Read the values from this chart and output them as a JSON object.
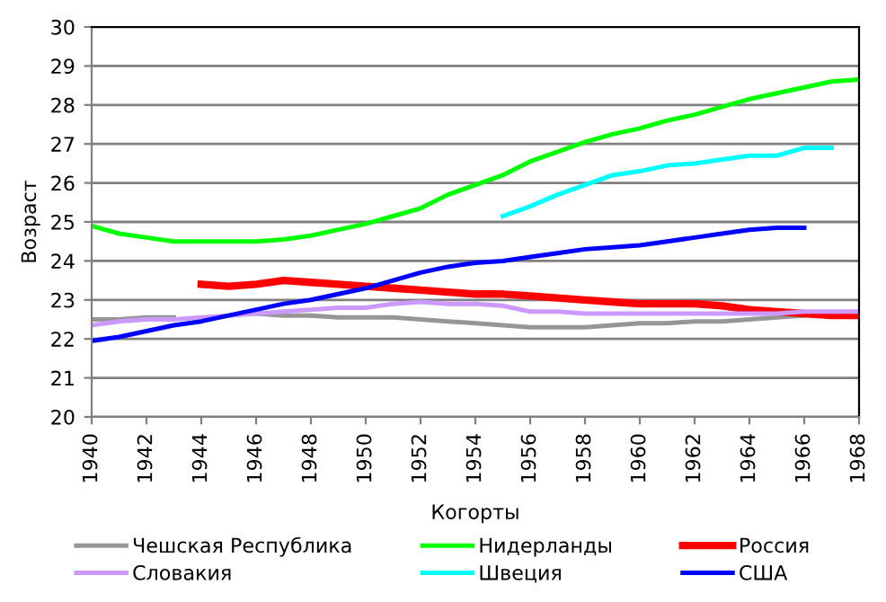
{
  "chart_data": {
    "type": "line",
    "xlabel": "Когорты",
    "ylabel": "Возраст",
    "xlim": [
      1940,
      1968
    ],
    "xticks": [
      1940,
      1942,
      1944,
      1946,
      1948,
      1950,
      1952,
      1954,
      1956,
      1958,
      1960,
      1962,
      1964,
      1966,
      1968
    ],
    "ylim": [
      20,
      30
    ],
    "yticks": [
      20,
      21,
      22,
      23,
      24,
      25,
      26,
      27,
      28,
      29,
      30
    ],
    "grid": "y",
    "legend": "bottom",
    "marker": "none",
    "line_style": "solid",
    "series": [
      {
        "name": "Чешская Республика",
        "color": "#969696",
        "x": [
          1940,
          1941,
          1942,
          1943,
          1944,
          1945,
          1946,
          1947,
          1948,
          1949,
          1950,
          1951,
          1952,
          1953,
          1954,
          1955,
          1956,
          1957,
          1958,
          1959,
          1960,
          1961,
          1962,
          1963,
          1964,
          1965,
          1966
        ],
        "values": [
          22.5,
          22.5,
          22.55,
          22.55,
          null,
          null,
          22.65,
          22.6,
          22.6,
          22.55,
          22.55,
          22.55,
          22.5,
          22.45,
          22.4,
          22.35,
          22.3,
          22.3,
          22.3,
          22.35,
          22.4,
          22.4,
          22.45,
          22.45,
          22.5,
          22.55,
          22.6
        ]
      },
      {
        "name": "Нидерланды",
        "color": "#00ff00",
        "x": [
          1940,
          1941,
          1942,
          1943,
          1944,
          1945,
          1946,
          1947,
          1948,
          1949,
          1950,
          1951,
          1952,
          1953,
          1954,
          1955,
          1956,
          1957,
          1958,
          1959,
          1960,
          1961,
          1962,
          1963,
          1964,
          1965,
          1966,
          1967,
          1968
        ],
        "values": [
          24.9,
          24.7,
          24.6,
          24.5,
          24.5,
          24.5,
          24.5,
          24.55,
          24.65,
          24.8,
          24.95,
          25.15,
          25.35,
          25.7,
          25.95,
          26.2,
          26.55,
          26.8,
          27.05,
          27.25,
          27.4,
          27.6,
          27.75,
          27.95,
          28.15,
          28.3,
          28.45,
          28.6,
          28.65
        ]
      },
      {
        "name": "Россия",
        "color": "#ff0000",
        "x": [
          1944,
          1945,
          1946,
          1947,
          1948,
          1949,
          1950,
          1951,
          1952,
          1953,
          1954,
          1955,
          1956,
          1957,
          1958,
          1959,
          1960,
          1961,
          1962,
          1963,
          1964,
          1965,
          1966,
          1967,
          1968
        ],
        "values": [
          23.4,
          23.35,
          23.4,
          23.5,
          23.45,
          23.4,
          23.35,
          23.3,
          23.25,
          23.2,
          23.15,
          23.15,
          23.1,
          23.05,
          23.0,
          22.95,
          22.9,
          22.9,
          22.9,
          22.85,
          22.75,
          22.7,
          22.65,
          22.6,
          22.6
        ]
      },
      {
        "name": "Словакия",
        "color": "#cc99ff",
        "x": [
          1940,
          1941,
          1942,
          1943,
          1944,
          1945,
          1946,
          1947,
          1948,
          1949,
          1950,
          1951,
          1952,
          1953,
          1954,
          1955,
          1956,
          1957,
          1958,
          1959,
          1960,
          1961,
          1962,
          1963,
          1964,
          1965,
          1966,
          1967,
          1968
        ],
        "values": [
          22.35,
          22.45,
          22.5,
          22.5,
          22.55,
          22.6,
          22.65,
          22.7,
          22.75,
          22.8,
          22.8,
          22.9,
          22.95,
          22.9,
          22.9,
          22.85,
          22.7,
          22.7,
          22.65,
          22.65,
          22.65,
          22.65,
          22.65,
          22.65,
          22.65,
          22.65,
          22.7,
          22.7,
          22.7
        ]
      },
      {
        "name": "Швеция",
        "color": "#00ffff",
        "x": [
          1955,
          1956,
          1957,
          1958,
          1959,
          1960,
          1961,
          1962,
          1963,
          1964,
          1965,
          1966,
          1967
        ],
        "values": [
          25.15,
          25.4,
          25.7,
          25.95,
          26.2,
          26.3,
          26.45,
          26.5,
          26.6,
          26.7,
          26.7,
          26.9,
          26.9
        ]
      },
      {
        "name": "США",
        "color": "#0000ff",
        "x": [
          1940,
          1941,
          1942,
          1943,
          1944,
          1945,
          1946,
          1947,
          1948,
          1949,
          1950,
          1951,
          1952,
          1953,
          1954,
          1955,
          1956,
          1957,
          1958,
          1959,
          1960,
          1961,
          1962,
          1963,
          1964,
          1965,
          1966
        ],
        "values": [
          21.95,
          22.05,
          22.2,
          22.35,
          22.45,
          22.6,
          22.75,
          22.9,
          23.0,
          23.15,
          23.3,
          23.5,
          23.7,
          23.85,
          23.95,
          24.0,
          24.1,
          24.2,
          24.3,
          24.35,
          24.4,
          24.5,
          24.6,
          24.7,
          24.8,
          24.85,
          24.85
        ]
      }
    ]
  }
}
